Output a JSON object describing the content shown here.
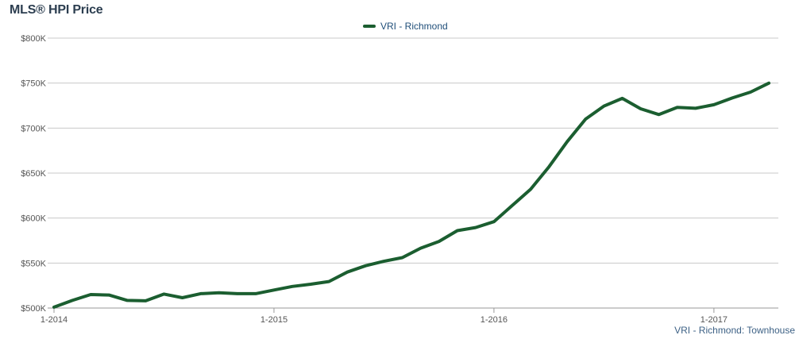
{
  "chart_data": {
    "type": "line",
    "title": "MLS® HPI Price",
    "xlabel": "",
    "ylabel": "",
    "ylim": [
      500000,
      800000
    ],
    "yticks": [
      {
        "value": 800000,
        "label": "$800K"
      },
      {
        "value": 750000,
        "label": "$750K"
      },
      {
        "value": 700000,
        "label": "$700K"
      },
      {
        "value": 650000,
        "label": "$650K"
      },
      {
        "value": 600000,
        "label": "$600K"
      },
      {
        "value": 550000,
        "label": "$550K"
      },
      {
        "value": 500000,
        "label": "$500K"
      }
    ],
    "xticks": [
      {
        "value": "2014-01",
        "label": "1-2014"
      },
      {
        "value": "2015-01",
        "label": "1-2015"
      },
      {
        "value": "2016-01",
        "label": "1-2016"
      },
      {
        "value": "2017-01",
        "label": "1-2017"
      }
    ],
    "grid": true,
    "legend_position": "top-center",
    "x": [
      "2014-01",
      "2014-02",
      "2014-03",
      "2014-04",
      "2014-05",
      "2014-06",
      "2014-07",
      "2014-08",
      "2014-09",
      "2014-10",
      "2014-11",
      "2014-12",
      "2015-01",
      "2015-02",
      "2015-03",
      "2015-04",
      "2015-05",
      "2015-06",
      "2015-07",
      "2015-08",
      "2015-09",
      "2015-10",
      "2015-11",
      "2015-12",
      "2016-01",
      "2016-02",
      "2016-03",
      "2016-04",
      "2016-05",
      "2016-06",
      "2016-07",
      "2016-08",
      "2016-09",
      "2016-10",
      "2016-11",
      "2016-12",
      "2017-01",
      "2017-02",
      "2017-03",
      "2017-04"
    ],
    "series": [
      {
        "name": "VRI - Richmond",
        "color": "#1b5e30",
        "values": [
          501000,
          508500,
          515000,
          514500,
          508500,
          508000,
          515500,
          511500,
          516000,
          517000,
          516000,
          516000,
          520000,
          524000,
          526500,
          529500,
          540000,
          547000,
          552000,
          556000,
          566500,
          574000,
          586000,
          589500,
          596000,
          614000,
          632000,
          657000,
          685000,
          710000,
          724500,
          733000,
          721500,
          715000,
          723000,
          722000,
          726000,
          733500,
          740000,
          750000
        ]
      }
    ]
  },
  "footer_caption": "VRI - Richmond: Townhouse",
  "colors": {
    "grid": "#c8c8c8",
    "axis": "#999999",
    "line": "#1b5e30"
  }
}
